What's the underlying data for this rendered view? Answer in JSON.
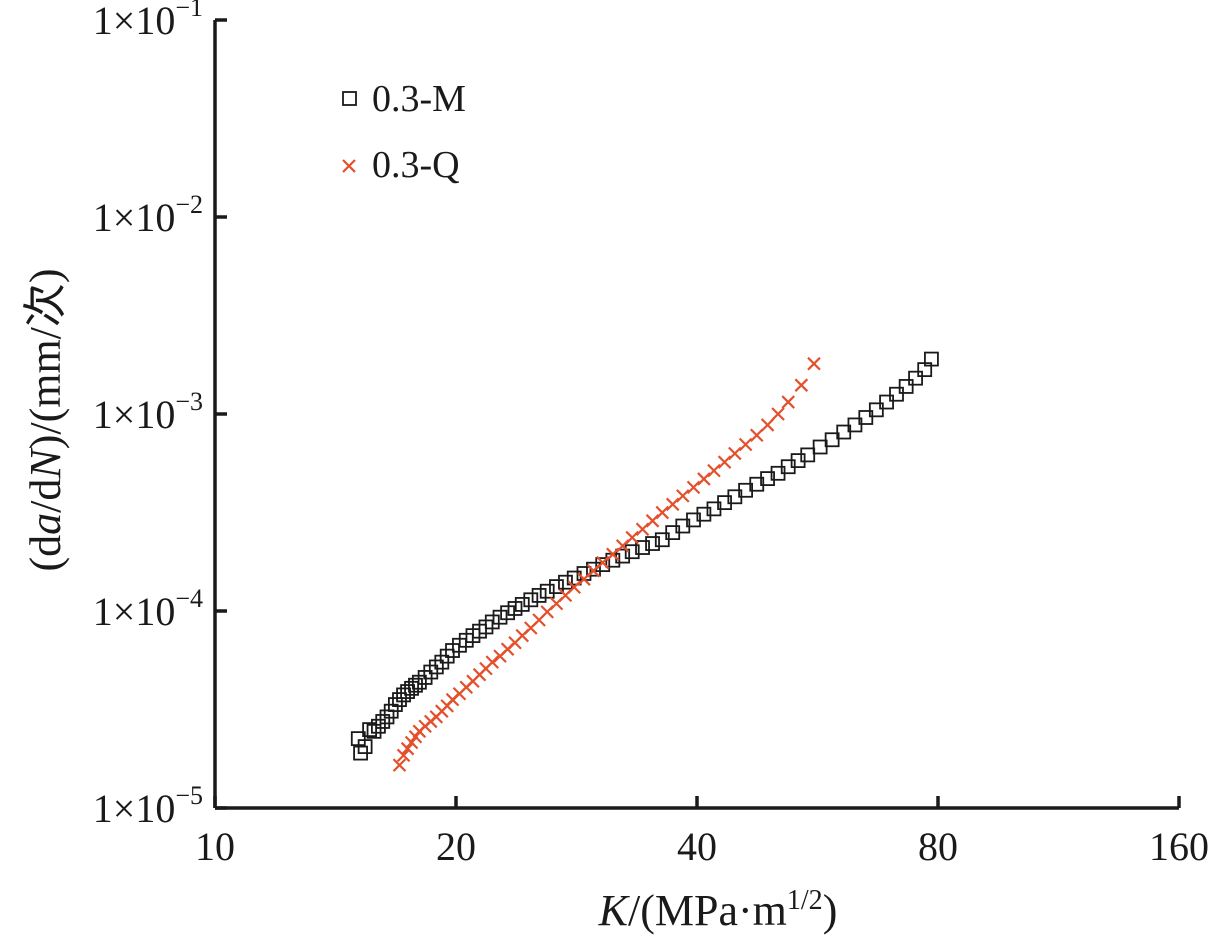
{
  "chart_data": {
    "type": "scatter",
    "xscale": "log2",
    "yscale": "log10",
    "xlim": [
      10,
      160
    ],
    "ylim": [
      1e-05,
      0.1
    ],
    "xticks": [
      10,
      20,
      40,
      80,
      160
    ],
    "xtick_labels": [
      "10",
      "20",
      "40",
      "80",
      "160"
    ],
    "yticks": [
      1e-05,
      0.0001,
      0.001,
      0.01,
      0.1
    ],
    "ytick_labels": [
      {
        "base": "1×10",
        "exp": "−5"
      },
      {
        "base": "1×10",
        "exp": "−4"
      },
      {
        "base": "1×10",
        "exp": "−3"
      },
      {
        "base": "1×10",
        "exp": "−2"
      },
      {
        "base": "1×10",
        "exp": "−1"
      }
    ],
    "xlabel": {
      "italic": "K",
      "text": "/(MPa·m",
      "sup": "1/2",
      "close": ")"
    },
    "ylabel": {
      "pre": "(d",
      "a": "a",
      "mid": "/d",
      "n": "N",
      "post": ")/(mm/次)"
    },
    "legend_position": "top-left",
    "series": [
      {
        "name": "0.3-M",
        "marker": "square",
        "color": "#1a1a1a",
        "x": [
          15.1,
          15.2,
          15.4,
          15.6,
          15.8,
          16.0,
          16.2,
          16.4,
          16.6,
          16.8,
          17.0,
          17.2,
          17.4,
          17.6,
          17.8,
          18.0,
          18.3,
          18.6,
          18.9,
          19.2,
          19.5,
          19.8,
          20.2,
          20.6,
          21.0,
          21.4,
          21.8,
          22.2,
          22.7,
          23.2,
          23.7,
          24.2,
          24.8,
          25.4,
          26.0,
          26.7,
          27.4,
          28.1,
          28.9,
          29.7,
          30.5,
          31.4,
          32.3,
          33.2,
          34.2,
          35.2,
          36.2,
          37.3,
          38.4,
          39.6,
          40.8,
          42.0,
          43.3,
          44.6,
          46.0,
          47.5,
          49.0,
          50.5,
          52.0,
          53.5,
          55.0,
          57.0,
          59.0,
          61.0,
          63.0,
          65.0,
          67.0,
          69.0,
          71.0,
          73.0,
          75.0,
          77.0,
          78.5
        ],
        "y": [
          2.25e-05,
          1.9e-05,
          2.05e-05,
          2.5e-05,
          2.45e-05,
          2.6e-05,
          2.75e-05,
          2.9e-05,
          3.1e-05,
          3.35e-05,
          3.55e-05,
          3.75e-05,
          3.9e-05,
          4.05e-05,
          4.2e-05,
          4.35e-05,
          4.6e-05,
          4.9e-05,
          5.2e-05,
          5.5e-05,
          5.9e-05,
          6.3e-05,
          6.7e-05,
          7.1e-05,
          7.5e-05,
          7.9e-05,
          8.3e-05,
          8.8e-05,
          9.3e-05,
          9.8e-05,
          0.000103,
          0.000108,
          0.000114,
          0.00012,
          0.000126,
          0.000133,
          0.00014,
          0.000147,
          0.000155,
          0.000163,
          0.000172,
          0.000181,
          0.00019,
          0.0002,
          0.00021,
          0.00022,
          0.00023,
          0.00025,
          0.00027,
          0.00029,
          0.00031,
          0.00033,
          0.000355,
          0.00038,
          0.00041,
          0.00044,
          0.00047,
          0.0005,
          0.00054,
          0.00058,
          0.00062,
          0.00068,
          0.00074,
          0.00081,
          0.00088,
          0.00096,
          0.00105,
          0.00115,
          0.00126,
          0.00138,
          0.00152,
          0.00168,
          0.0019
        ]
      },
      {
        "name": "0.3-Q",
        "marker": "x",
        "color": "#e3502b",
        "x": [
          17.0,
          17.2,
          17.4,
          17.6,
          17.8,
          18.0,
          18.3,
          18.6,
          18.9,
          19.2,
          19.5,
          19.8,
          20.2,
          20.6,
          21.0,
          21.4,
          21.8,
          22.2,
          22.7,
          23.2,
          23.7,
          24.2,
          24.8,
          25.4,
          26.0,
          26.7,
          27.4,
          28.1,
          28.9,
          29.7,
          30.5,
          31.4,
          32.3,
          33.2,
          34.2,
          35.2,
          36.2,
          37.3,
          38.4,
          39.6,
          40.8,
          42.0,
          43.3,
          44.6,
          46.0,
          47.5,
          49.0,
          50.5,
          52.0,
          54.0,
          56.0
        ],
        "y": [
          1.65e-05,
          1.85e-05,
          2e-05,
          2.15e-05,
          2.3e-05,
          2.45e-05,
          2.6e-05,
          2.75e-05,
          2.9e-05,
          3.1e-05,
          3.3e-05,
          3.55e-05,
          3.8e-05,
          4.1e-05,
          4.4e-05,
          4.75e-05,
          5.1e-05,
          5.5e-05,
          5.9e-05,
          6.4e-05,
          6.9e-05,
          7.5e-05,
          8.2e-05,
          9e-05,
          9.9e-05,
          0.000109,
          0.00012,
          0.000132,
          0.000145,
          0.00016,
          0.000176,
          0.000194,
          0.000214,
          0.000236,
          0.00026,
          0.000287,
          0.000316,
          0.000348,
          0.000384,
          0.000424,
          0.000468,
          0.000516,
          0.00057,
          0.00063,
          0.0007,
          0.00078,
          0.00088,
          0.001,
          0.00115,
          0.0014,
          0.0018
        ]
      }
    ]
  }
}
